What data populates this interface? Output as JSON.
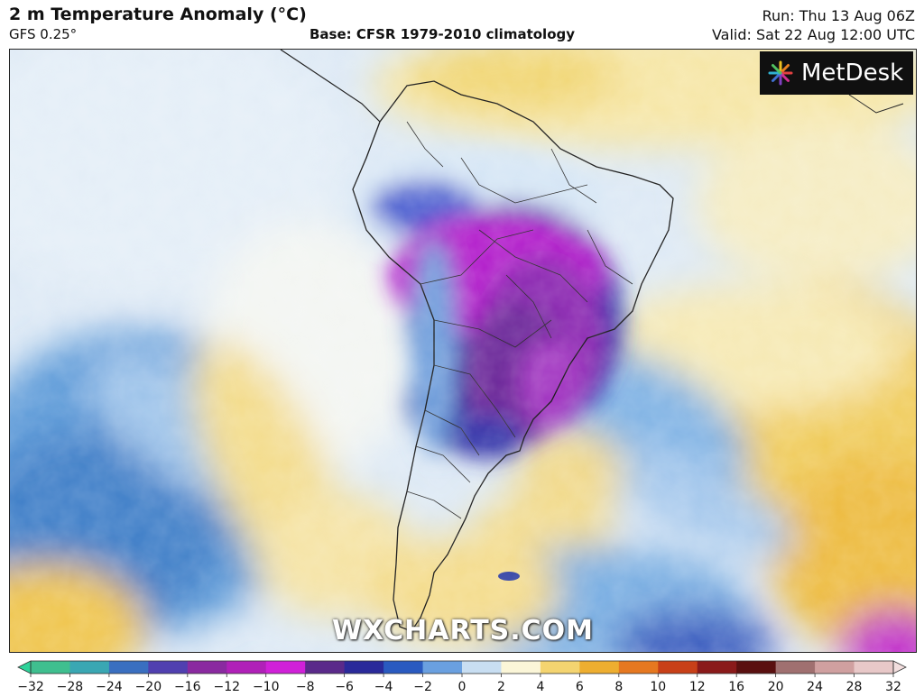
{
  "header": {
    "title": "2 m Temperature Anomaly (°C)",
    "model": "GFS 0.25°",
    "base": "Base: CFSR 1979-2010 climatology",
    "run": "Run: Thu 13 Aug 06Z",
    "valid": "Valid: Sat 22 Aug 12:00 UTC"
  },
  "logo": {
    "text": "MetDesk"
  },
  "watermark": {
    "text": "WXCHARTS.COM"
  },
  "colorbar": {
    "ticks": [
      "−32",
      "−28",
      "−24",
      "−20",
      "−16",
      "−12",
      "−10",
      "−8",
      "−6",
      "−4",
      "−2",
      "0",
      "2",
      "4",
      "6",
      "8",
      "10",
      "12",
      "16",
      "20",
      "24",
      "28",
      "32"
    ],
    "colors": [
      "#3fbf8f",
      "#3aa7b3",
      "#3a6fc0",
      "#5040b0",
      "#8a2aa0",
      "#b020b8",
      "#d020d8",
      "#5a2a8a",
      "#2a2a9a",
      "#2a5ac0",
      "#6aa0e0",
      "#c8def2",
      "#fbf6d8",
      "#f4d470",
      "#eeae30",
      "#e67820",
      "#c84018",
      "#8a1a1a",
      "#5a1010",
      "#a07070",
      "#d0a0a0",
      "#e8c8c8"
    ],
    "colors_meaning": "diverging cold-to-warm scale"
  },
  "colors": {
    "cold_core": "#b81ed0",
    "deep_blue": "#2330a8",
    "cool_blue": "#4f8fd6",
    "light_blue": "#c9ddf1",
    "neutral": "#f4f6f8",
    "warm_yellow": "#f1d46a",
    "warm_orange": "#e8a83a"
  }
}
